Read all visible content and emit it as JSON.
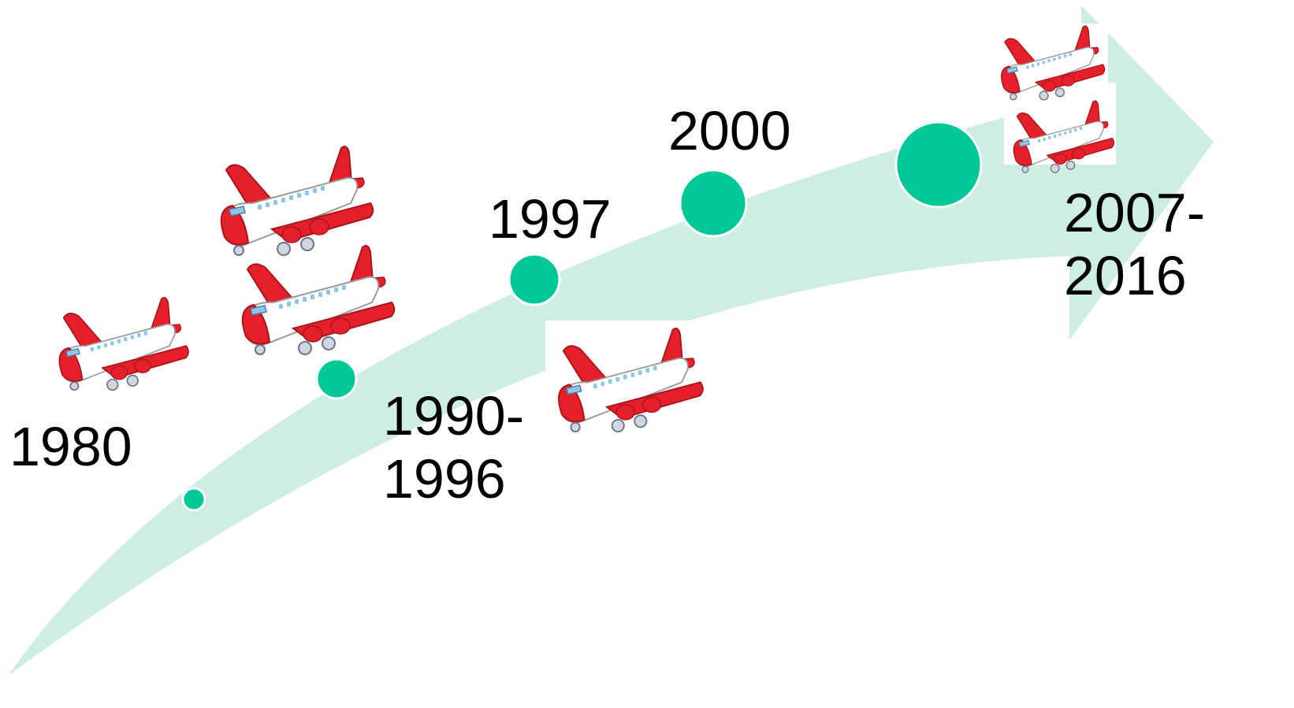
{
  "colors": {
    "arrow": "#cdeee0",
    "node": "#00c896",
    "node_outline": "#ffffff",
    "plane_body": "#ffffff",
    "plane_red": "#e5202a",
    "label_text": "#000000"
  },
  "icon": "airplane-icon",
  "milestones": [
    {
      "label_line1": "1980",
      "label_line2": "",
      "plane_count": 1,
      "node_size": "smallest"
    },
    {
      "label_line1": "1990-",
      "label_line2": "1996",
      "plane_count": 2,
      "node_size": "small"
    },
    {
      "label_line1": "1997",
      "label_line2": "",
      "plane_count": 1,
      "node_size": "medium"
    },
    {
      "label_line1": "2000",
      "label_line2": "",
      "plane_count": 0,
      "node_size": "large"
    },
    {
      "label_line1": "2007-",
      "label_line2": "2016",
      "plane_count": 2,
      "node_size": "largest"
    }
  ]
}
